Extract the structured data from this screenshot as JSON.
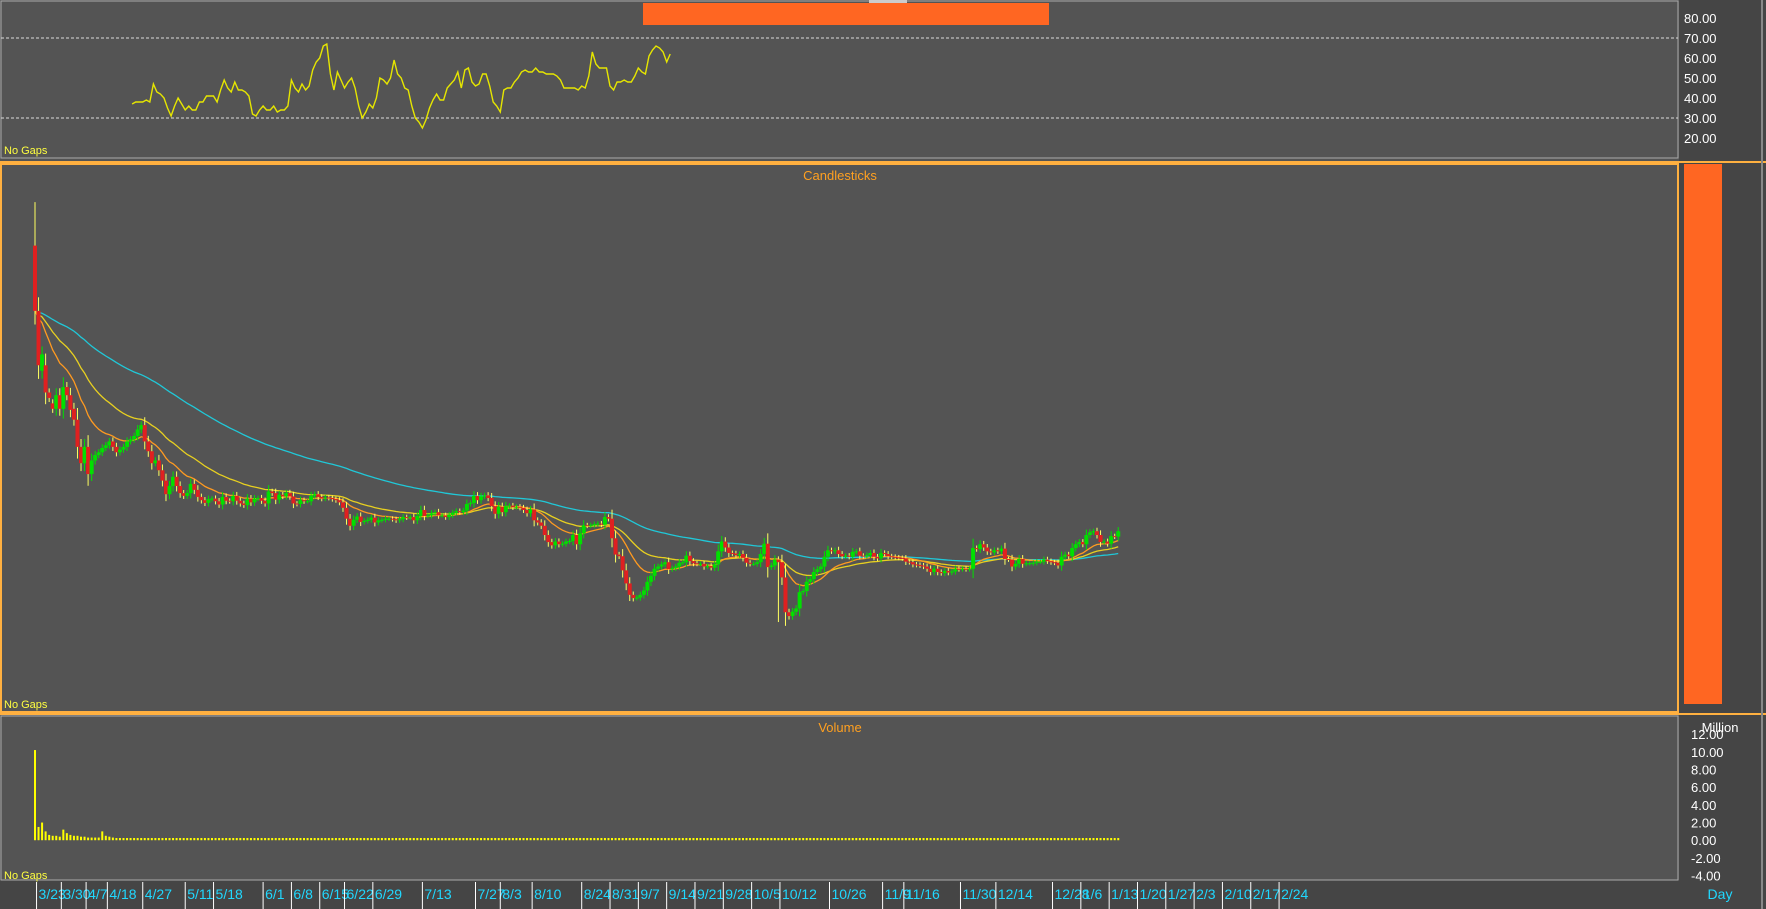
{
  "panes": {
    "rsi_tag": "No Gaps",
    "candle_title": "Candlesticks",
    "candle_tag": "No Gaps",
    "volume_title": "Volume",
    "volume_tag": "No Gaps",
    "volume_unit": "Million",
    "period": "Day"
  },
  "colors": {
    "background": "#545454",
    "axis_background": "#454545",
    "up": "#00e000",
    "down": "#e02020",
    "accent": "#ff6622",
    "title": "#ffa020",
    "rsi_line": "#e6e600",
    "ma_short": "#ff9a20",
    "ma_mid": "#e8d020",
    "ma_long": "#20c8d8",
    "volume_bar": "#ffff00",
    "date_text": "#20d8ff"
  },
  "chart_data": [
    {
      "type": "line",
      "name": "rsi",
      "ylim": [
        10,
        88
      ],
      "y_ticks": [
        "80.00",
        "70.00",
        "60.00",
        "50.00",
        "40.00",
        "30.00",
        "20.00"
      ],
      "y_tick_values": [
        80,
        70,
        60,
        50,
        40,
        30,
        20
      ],
      "ref_lines": [
        70,
        30
      ],
      "values": [
        37,
        38,
        38,
        38,
        39,
        38,
        47,
        43,
        42,
        40,
        35,
        31,
        36,
        40,
        37,
        34,
        36,
        34,
        34,
        38,
        38,
        41,
        41,
        41,
        38,
        44,
        49,
        45,
        43,
        48,
        44,
        44,
        43,
        41,
        32,
        31,
        34,
        36,
        34,
        34,
        36,
        33,
        34,
        34,
        36,
        49,
        45,
        43,
        47,
        44,
        46,
        54,
        58,
        60,
        66,
        67,
        52,
        44,
        53,
        49,
        45,
        48,
        50,
        45,
        36,
        30,
        33,
        37,
        35,
        40,
        50,
        49,
        47,
        50,
        59,
        52,
        50,
        45,
        44,
        36,
        30,
        28,
        25,
        29,
        35,
        39,
        42,
        39,
        39,
        45,
        47,
        49,
        53,
        45,
        54,
        55,
        48,
        46,
        47,
        52,
        52,
        46,
        38,
        36,
        33,
        44,
        45,
        45,
        48,
        50,
        53,
        54,
        53,
        53,
        55,
        53,
        53,
        52,
        52,
        52,
        51,
        49,
        45,
        45,
        45,
        45,
        44,
        46,
        45,
        51,
        63,
        57,
        55,
        55,
        55,
        46,
        44,
        48,
        48,
        49,
        48,
        48,
        51,
        55,
        53,
        52,
        61,
        64,
        66,
        65,
        63,
        58,
        62
      ]
    },
    {
      "type": "candlestick",
      "name": "price",
      "ylim": [
        0,
        100
      ],
      "x_tick_labels": [
        "3/23",
        "3/30",
        "4/7",
        "4/18",
        "4/27",
        "5/11",
        "5/18",
        "6/1",
        "6/8",
        "6/15",
        "6/22",
        "6/29",
        "7/13",
        "7/27",
        "8/3",
        "8/10",
        "8/24",
        "8/31",
        "9/7",
        "9/14",
        "9/21",
        "9/28",
        "10/5",
        "10/12",
        "10/26",
        "11/9",
        "11/16",
        "11/30",
        "12/14",
        "12/28",
        "1/6",
        "1/13",
        "1/20",
        "1/27",
        "2/3",
        "2/10",
        "2/17",
        "2/24"
      ],
      "x_tick_index": [
        1,
        8,
        15,
        21,
        31,
        43,
        51,
        65,
        73,
        81,
        88,
        96,
        110,
        125,
        132,
        141,
        155,
        163,
        171,
        179,
        187,
        195,
        203,
        211,
        225,
        240,
        246,
        262,
        272,
        288,
        296,
        304,
        312,
        320,
        328,
        336,
        344,
        352
      ],
      "close": [
        73.0,
        63.0,
        65.0,
        58.0,
        57.0,
        55.0,
        57.5,
        55.0,
        59.0,
        57.5,
        54.8,
        53.0,
        48.0,
        45.0,
        48.0,
        43.0,
        45.5,
        46.5,
        47.0,
        47.8,
        48.3,
        49.0,
        48.0,
        47.0,
        47.5,
        48.0,
        49.0,
        49.4,
        50.0,
        51.2,
        52.0,
        49.0,
        47.2,
        45.0,
        45.5,
        43.7,
        41.8,
        39.3,
        40.8,
        42.5,
        40.8,
        39.5,
        39.0,
        39.5,
        41.2,
        40.1,
        38.8,
        38.2,
        37.7,
        38.4,
        38.5,
        38.0,
        37.4,
        38.8,
        38.1,
        38.0,
        39.0,
        38.1,
        37.6,
        37.3,
        38.5,
        37.8,
        38.5,
        38.6,
        38.1,
        37.6,
        39.8,
        39.5,
        38.3,
        39.2,
        38.9,
        39.5,
        38.9,
        37.6,
        37.5,
        38.2,
        38.0,
        38.0,
        39.0,
        39.3,
        38.8,
        38.5,
        38.7,
        38.6,
        38.4,
        38.2,
        37.8,
        36.8,
        34.8,
        33.5,
        34.6,
        35.2,
        34.2,
        34.4,
        34.6,
        35.0,
        34.1,
        34.5,
        34.6,
        34.8,
        34.8,
        34.7,
        34.5,
        34.7,
        35.1,
        35.0,
        35.1,
        34.5,
        35.3,
        36.4,
        35.3,
        35.4,
        35.8,
        36.0,
        35.4,
        35.4,
        35.1,
        35.5,
        35.9,
        36.2,
        36.0,
        36.3,
        37.5,
        37.7,
        39.0,
        38.2,
        38.9,
        39.1,
        38.6,
        37.1,
        35.7,
        37.0,
        36.0,
        37.1,
        37.2,
        36.9,
        37.0,
        36.8,
        36.4,
        35.8,
        36.5,
        34.5,
        34.1,
        33.5,
        31.8,
        30.5,
        29.9,
        30.6,
        30.1,
        30.2,
        30.6,
        30.7,
        31.8,
        30.1,
        32.1,
        33.6,
        33.5,
        33.6,
        33.8,
        33.9,
        33.7,
        35.1,
        34.8,
        31.2,
        28.2,
        27.9,
        25.3,
        22.9,
        20.8,
        20.2,
        20.3,
        20.8,
        21.6,
        23.2,
        24.3,
        25.6,
        26.0,
        26.4,
        26.8,
        25.5,
        25.7,
        26.0,
        26.7,
        26.8,
        28.0,
        27.0,
        26.6,
        26.5,
        26.5,
        26.0,
        26.1,
        25.8,
        26.4,
        28.8,
        30.6,
        29.5,
        28.5,
        28.4,
        28.1,
        28.3,
        27.6,
        26.7,
        26.5,
        26.5,
        26.8,
        28.3,
        30.2,
        25.9,
        26.2,
        27.3,
        26.8,
        24.0,
        17.6,
        16.9,
        17.7,
        18.3,
        21.3,
        21.5,
        23.2,
        23.7,
        25.0,
        25.5,
        26.0,
        27.8,
        29.0,
        28.8,
        29.0,
        28.3,
        27.9,
        28.0,
        27.8,
        28.7,
        28.8,
        28.0,
        27.9,
        28.1,
        28.5,
        27.8,
        27.5,
        28.5,
        28.3,
        27.9,
        27.8,
        27.7,
        27.6,
        27.5,
        26.9,
        26.8,
        26.4,
        26.3,
        26.2,
        26.0,
        25.6,
        25.0,
        25.6,
        25.0,
        24.8,
        25.2,
        24.9,
        25.1,
        25.6,
        25.5,
        25.6,
        25.5,
        25.6,
        29.4,
        29.2,
        30.1,
        29.5,
        28.8,
        28.6,
        29.0,
        28.8,
        29.3,
        27.4,
        27.3,
        26.0,
        26.5,
        27.4,
        26.5,
        26.6,
        26.6,
        26.7,
        26.9,
        26.9,
        27.3,
        27.0,
        26.8,
        26.7,
        26.2,
        27.8,
        28.2,
        27.9,
        29.4,
        30.1,
        30.5,
        30.1,
        31.8,
        32.3,
        32.5,
        31.8,
        30.5,
        30.6,
        30.2,
        31.6,
        31.5,
        32.5
      ],
      "open": [
        85.0,
        73.0,
        62.0,
        63.0,
        58.0,
        56.0,
        55.0,
        57.5,
        55.0,
        59.0,
        57.5,
        55.0,
        53.0,
        48.0,
        45.0,
        48.0,
        43.0,
        45.5,
        46.5,
        47.0,
        47.8,
        48.3,
        49.0,
        48.0,
        47.0,
        47.5,
        48.0,
        49.0,
        49.4,
        50.0,
        51.2,
        52.0,
        49.0,
        47.2,
        45.0,
        45.5,
        43.7,
        41.8,
        39.3,
        40.8,
        42.5,
        40.8,
        39.5,
        39.0,
        39.5,
        41.2,
        40.1,
        38.8,
        38.2,
        37.7,
        38.4,
        38.5,
        38.0,
        37.4,
        38.8,
        38.1,
        38.0,
        39.0,
        38.1,
        37.6,
        37.3,
        38.5,
        37.8,
        38.5,
        38.6,
        38.1,
        37.6,
        39.8,
        39.5,
        38.3,
        39.2,
        38.9,
        39.5,
        38.9,
        37.6,
        37.5,
        38.2,
        38.0,
        38.0,
        39.0,
        39.3,
        38.8,
        38.5,
        38.7,
        38.6,
        38.4,
        38.2,
        37.8,
        36.8,
        34.8,
        33.5,
        34.6,
        35.2,
        34.2,
        34.4,
        34.6,
        35.0,
        34.1,
        34.5,
        34.6,
        34.8,
        34.8,
        34.7,
        34.5,
        34.7,
        35.1,
        35.0,
        35.1,
        34.5,
        35.3,
        36.4,
        35.3,
        35.4,
        35.8,
        36.0,
        35.4,
        35.4,
        35.1,
        35.5,
        35.9,
        36.2,
        36.0,
        36.3,
        37.5,
        37.7,
        39.0,
        38.2,
        38.9,
        39.1,
        38.6,
        37.1,
        35.7,
        37.0,
        36.0,
        37.1,
        37.2,
        36.9,
        37.0,
        36.8,
        36.4,
        35.8,
        36.5,
        34.5,
        34.1,
        33.5,
        31.8,
        30.5,
        29.9,
        30.6,
        30.1,
        30.2,
        30.6,
        30.7,
        31.8,
        30.1,
        32.1,
        33.6,
        33.5,
        33.6,
        33.8,
        33.9,
        33.7,
        35.1,
        34.8,
        31.2,
        28.2,
        27.9,
        25.3,
        22.9,
        20.8,
        20.2,
        20.3,
        20.8,
        21.6,
        23.2,
        24.3,
        25.6,
        26.0,
        26.4,
        26.8,
        25.5,
        25.7,
        26.0,
        26.7,
        26.8,
        28.0,
        27.0,
        26.6,
        26.5,
        26.5,
        26.0,
        26.1,
        25.8,
        26.4,
        28.8,
        30.6,
        29.5,
        28.5,
        28.4,
        28.1,
        28.3,
        27.6,
        26.7,
        26.5,
        26.5,
        26.8,
        28.3,
        30.2,
        25.9,
        26.2,
        27.3,
        26.8,
        24.0,
        17.6,
        16.9,
        17.7,
        18.3,
        21.3,
        21.5,
        23.2,
        23.7,
        25.0,
        25.5,
        26.0,
        27.8,
        29.0,
        28.8,
        29.0,
        28.3,
        27.9,
        28.0,
        27.8,
        28.7,
        28.8,
        28.0,
        27.9,
        28.1,
        28.5,
        27.8,
        27.5,
        28.5,
        28.3,
        27.9,
        27.8,
        27.7,
        27.6,
        27.5,
        26.9,
        26.8,
        26.4,
        26.3,
        26.2,
        26.0,
        25.6,
        25.0,
        25.6,
        25.0,
        24.8,
        25.2,
        24.9,
        25.1,
        25.6,
        25.5,
        25.6,
        25.5,
        25.6,
        29.4,
        29.2,
        30.1,
        29.5,
        28.8,
        28.6,
        29.0,
        28.8,
        29.3,
        27.4,
        27.3,
        26.0,
        26.5,
        27.4,
        26.5,
        26.6,
        26.6,
        26.7,
        26.9,
        26.9,
        27.3,
        27.0,
        26.8,
        26.7,
        26.2,
        27.8,
        28.2,
        27.9,
        29.4,
        30.1,
        30.5,
        30.1,
        31.8,
        32.3,
        32.5,
        31.8,
        30.5,
        30.6,
        30.2,
        31.6,
        31.5
      ],
      "overlays": [
        "ma_short",
        "ma_mid",
        "ma_long"
      ]
    },
    {
      "type": "bar",
      "name": "volume",
      "ylabel": "Million",
      "ylim": [
        -4.5,
        13.6
      ],
      "y_ticks": [
        "12.00",
        "10.00",
        "8.00",
        "6.00",
        "4.00",
        "2.00",
        "0.00",
        "-2.00",
        "-4.00"
      ],
      "y_tick_values": [
        12,
        10,
        8,
        6,
        4,
        2,
        0,
        -2,
        -4
      ],
      "first_values": [
        10.2,
        1.5,
        2.0,
        1.0,
        0.6,
        0.5,
        0.5,
        0.4,
        1.2,
        0.8,
        0.6,
        0.5,
        0.5,
        0.4,
        0.4,
        0.3,
        0.3,
        0.3,
        0.3,
        1.0,
        0.5,
        0.4,
        0.3
      ],
      "base_value": 0.25
    }
  ]
}
